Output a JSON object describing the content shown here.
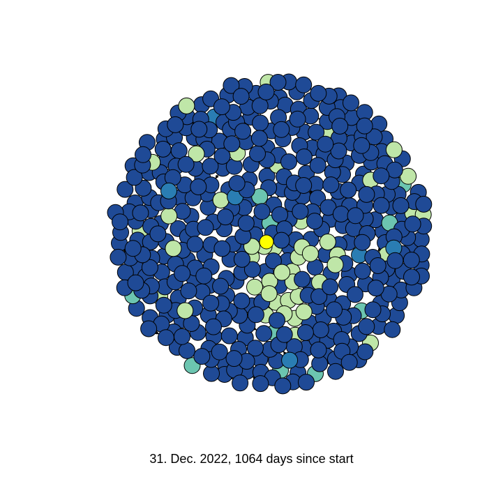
{
  "caption": "31. Dec. 2022,  1064 days since start",
  "colors": {
    "node_default": "#1f4a96",
    "node_mid": "#2a7db3",
    "node_teal": "#6cc5b0",
    "node_light": "#bfe6a8",
    "node_center": "#ffff00",
    "outline": "#000000",
    "edge": "#000000"
  }
}
